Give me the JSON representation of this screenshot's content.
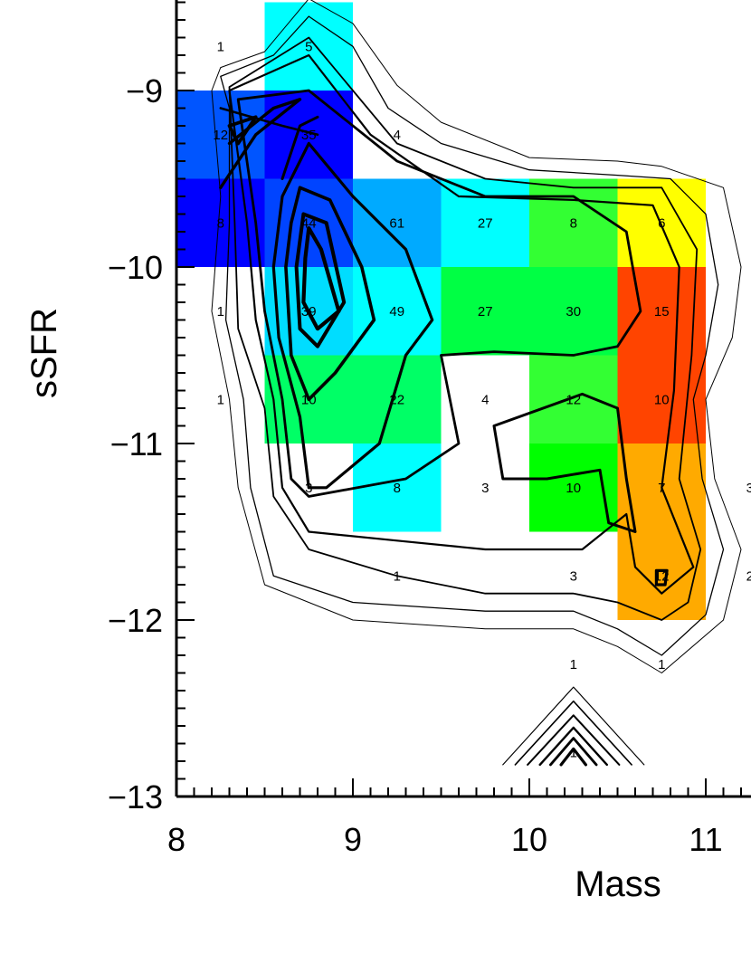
{
  "chart_data": {
    "type": "heatmap",
    "title": "",
    "xlabel": "Mass",
    "ylabel": "sSFR",
    "xlim": [
      8,
      11.35
    ],
    "ylim": [
      -13,
      -8.5
    ],
    "x_ticks": [
      {
        "value": 8,
        "label": "8"
      },
      {
        "value": 9,
        "label": "9"
      },
      {
        "value": 10,
        "label": "10"
      },
      {
        "value": 11,
        "label": "11"
      }
    ],
    "y_ticks": [
      {
        "value": -9,
        "label": "−9"
      },
      {
        "value": -10,
        "label": "−10"
      },
      {
        "value": -11,
        "label": "−11"
      },
      {
        "value": -12,
        "label": "−12"
      },
      {
        "value": -13,
        "label": "−13"
      }
    ],
    "bin_width_x": 0.5,
    "bin_width_y": 0.5,
    "cells": [
      {
        "x": 8.75,
        "y": -8.75,
        "color": "#00ffff"
      },
      {
        "x": 8.25,
        "y": -9.25,
        "color": "#0055ff"
      },
      {
        "x": 8.75,
        "y": -9.25,
        "color": "#0000ff"
      },
      {
        "x": 8.25,
        "y": -9.75,
        "color": "#0000ff"
      },
      {
        "x": 8.75,
        "y": -9.75,
        "color": "#0044ff"
      },
      {
        "x": 9.25,
        "y": -9.75,
        "color": "#00aaff"
      },
      {
        "x": 9.75,
        "y": -9.75,
        "color": "#00ffff"
      },
      {
        "x": 10.25,
        "y": -9.75,
        "color": "#33ff33"
      },
      {
        "x": 10.75,
        "y": -9.75,
        "color": "#ffff00"
      },
      {
        "x": 8.75,
        "y": -10.25,
        "color": "#00ddff"
      },
      {
        "x": 9.25,
        "y": -10.25,
        "color": "#00ffff"
      },
      {
        "x": 9.75,
        "y": -10.25,
        "color": "#00ff44"
      },
      {
        "x": 10.25,
        "y": -10.25,
        "color": "#00ff44"
      },
      {
        "x": 10.75,
        "y": -10.25,
        "color": "#ff4400"
      },
      {
        "x": 8.75,
        "y": -10.75,
        "color": "#00ff66"
      },
      {
        "x": 9.25,
        "y": -10.75,
        "color": "#00ff66"
      },
      {
        "x": 10.25,
        "y": -10.75,
        "color": "#33ff33"
      },
      {
        "x": 10.75,
        "y": -10.75,
        "color": "#ff4400"
      },
      {
        "x": 9.25,
        "y": -11.25,
        "color": "#00ffff"
      },
      {
        "x": 10.25,
        "y": -11.25,
        "color": "#00ff00"
      },
      {
        "x": 10.75,
        "y": -11.25,
        "color": "#ffaa00"
      },
      {
        "x": 10.75,
        "y": -11.75,
        "color": "#ffaa00"
      }
    ],
    "counts": [
      {
        "x": 8.25,
        "y": -8.75,
        "label": "1"
      },
      {
        "x": 8.75,
        "y": -8.75,
        "label": "5"
      },
      {
        "x": 8.25,
        "y": -9.25,
        "label": "12"
      },
      {
        "x": 8.75,
        "y": -9.25,
        "label": "35"
      },
      {
        "x": 9.25,
        "y": -9.25,
        "label": "4"
      },
      {
        "x": 8.25,
        "y": -9.75,
        "label": "8"
      },
      {
        "x": 8.75,
        "y": -9.75,
        "label": "44"
      },
      {
        "x": 9.25,
        "y": -9.75,
        "label": "61"
      },
      {
        "x": 9.75,
        "y": -9.75,
        "label": "27"
      },
      {
        "x": 10.25,
        "y": -9.75,
        "label": "8"
      },
      {
        "x": 10.75,
        "y": -9.75,
        "label": "6"
      },
      {
        "x": 8.25,
        "y": -10.25,
        "label": "1"
      },
      {
        "x": 8.75,
        "y": -10.25,
        "label": "39"
      },
      {
        "x": 9.25,
        "y": -10.25,
        "label": "49"
      },
      {
        "x": 9.75,
        "y": -10.25,
        "label": "27"
      },
      {
        "x": 10.25,
        "y": -10.25,
        "label": "30"
      },
      {
        "x": 10.75,
        "y": -10.25,
        "label": "15"
      },
      {
        "x": 8.25,
        "y": -10.75,
        "label": "1"
      },
      {
        "x": 8.75,
        "y": -10.75,
        "label": "10"
      },
      {
        "x": 9.25,
        "y": -10.75,
        "label": "22"
      },
      {
        "x": 9.75,
        "y": -10.75,
        "label": "4"
      },
      {
        "x": 10.25,
        "y": -10.75,
        "label": "12"
      },
      {
        "x": 10.75,
        "y": -10.75,
        "label": "10"
      },
      {
        "x": 8.75,
        "y": -11.25,
        "label": "3"
      },
      {
        "x": 9.25,
        "y": -11.25,
        "label": "8"
      },
      {
        "x": 9.75,
        "y": -11.25,
        "label": "3"
      },
      {
        "x": 10.25,
        "y": -11.25,
        "label": "10"
      },
      {
        "x": 10.75,
        "y": -11.25,
        "label": "7"
      },
      {
        "x": 11.25,
        "y": -11.25,
        "label": "3"
      },
      {
        "x": 9.25,
        "y": -11.75,
        "label": "1"
      },
      {
        "x": 10.25,
        "y": -11.75,
        "label": "3"
      },
      {
        "x": 10.75,
        "y": -11.75,
        "label": "12"
      },
      {
        "x": 11.25,
        "y": -11.75,
        "label": "2"
      },
      {
        "x": 10.25,
        "y": -12.25,
        "label": "1"
      },
      {
        "x": 10.75,
        "y": -12.25,
        "label": "1"
      },
      {
        "x": 10.25,
        "y": -12.75,
        "label": "1"
      }
    ],
    "contours": [
      {
        "stroke_width": 1,
        "points": [
          [
            8.25,
            -8.87
          ],
          [
            8.5,
            -8.78
          ],
          [
            8.75,
            -8.48
          ],
          [
            9.0,
            -8.62
          ],
          [
            9.25,
            -8.97
          ],
          [
            9.5,
            -9.18
          ],
          [
            10.0,
            -9.38
          ],
          [
            10.5,
            -9.4
          ],
          [
            10.75,
            -9.43
          ],
          [
            11.1,
            -9.55
          ],
          [
            11.2,
            -10.0
          ],
          [
            11.15,
            -10.4
          ],
          [
            11.0,
            -10.75
          ],
          [
            11.05,
            -11.2
          ],
          [
            11.2,
            -11.6
          ],
          [
            11.1,
            -12.0
          ],
          [
            10.75,
            -12.3
          ],
          [
            10.5,
            -12.15
          ],
          [
            10.25,
            -12.05
          ],
          [
            9.75,
            -12.05
          ],
          [
            9.0,
            -12.0
          ],
          [
            8.5,
            -11.8
          ],
          [
            8.35,
            -11.25
          ],
          [
            8.3,
            -10.75
          ],
          [
            8.2,
            -10.25
          ],
          [
            8.25,
            -9.6
          ],
          [
            8.2,
            -9.0
          ],
          [
            8.25,
            -8.87
          ]
        ]
      },
      {
        "stroke_width": 1.3,
        "points": [
          [
            8.25,
            -8.92
          ],
          [
            8.55,
            -8.8
          ],
          [
            8.75,
            -8.58
          ],
          [
            9.0,
            -8.75
          ],
          [
            9.2,
            -9.1
          ],
          [
            9.5,
            -9.3
          ],
          [
            10.0,
            -9.45
          ],
          [
            10.5,
            -9.48
          ],
          [
            10.8,
            -9.5
          ],
          [
            11.0,
            -9.7
          ],
          [
            11.07,
            -10.1
          ],
          [
            11.0,
            -10.5
          ],
          [
            10.93,
            -10.75
          ],
          [
            10.98,
            -11.2
          ],
          [
            11.1,
            -11.6
          ],
          [
            11.0,
            -11.97
          ],
          [
            10.75,
            -12.2
          ],
          [
            10.5,
            -12.05
          ],
          [
            10.25,
            -11.95
          ],
          [
            9.75,
            -11.95
          ],
          [
            9.0,
            -11.9
          ],
          [
            8.55,
            -11.75
          ],
          [
            8.42,
            -11.25
          ],
          [
            8.38,
            -10.75
          ],
          [
            8.28,
            -10.3
          ],
          [
            8.3,
            -9.75
          ],
          [
            8.3,
            -9.1
          ],
          [
            8.25,
            -8.92
          ]
        ]
      },
      {
        "stroke_width": 1.8,
        "points": [
          [
            8.3,
            -8.98
          ],
          [
            8.75,
            -8.7
          ],
          [
            9.0,
            -9.0
          ],
          [
            9.25,
            -9.3
          ],
          [
            9.75,
            -9.5
          ],
          [
            10.25,
            -9.55
          ],
          [
            10.75,
            -9.55
          ],
          [
            10.95,
            -9.9
          ],
          [
            10.92,
            -10.5
          ],
          [
            10.85,
            -11.2
          ],
          [
            10.97,
            -11.6
          ],
          [
            10.9,
            -11.9
          ],
          [
            10.75,
            -12.0
          ],
          [
            10.5,
            -11.9
          ],
          [
            10.25,
            -11.85
          ],
          [
            9.75,
            -11.85
          ],
          [
            9.25,
            -11.75
          ],
          [
            8.75,
            -11.6
          ],
          [
            8.55,
            -11.3
          ],
          [
            8.5,
            -10.8
          ],
          [
            8.35,
            -10.35
          ],
          [
            8.33,
            -9.75
          ],
          [
            8.3,
            -8.98
          ]
        ]
      },
      {
        "stroke_width": 2.2,
        "points": [
          [
            8.3,
            -9.0
          ],
          [
            8.75,
            -8.8
          ],
          [
            9.1,
            -9.25
          ],
          [
            9.6,
            -9.6
          ],
          [
            10.25,
            -9.62
          ],
          [
            10.7,
            -9.65
          ],
          [
            10.85,
            -10.0
          ],
          [
            10.82,
            -10.7
          ],
          [
            10.75,
            -11.25
          ],
          [
            10.93,
            -11.7
          ],
          [
            10.75,
            -11.85
          ],
          [
            10.6,
            -11.7
          ],
          [
            10.55,
            -11.4
          ],
          [
            10.3,
            -11.6
          ],
          [
            9.75,
            -11.6
          ],
          [
            9.25,
            -11.55
          ],
          [
            8.75,
            -11.5
          ],
          [
            8.6,
            -11.25
          ],
          [
            8.55,
            -10.75
          ],
          [
            8.45,
            -10.3
          ],
          [
            8.4,
            -9.75
          ],
          [
            8.3,
            -9.0
          ]
        ]
      },
      {
        "stroke_width": 2.8,
        "points": [
          [
            8.35,
            -9.05
          ],
          [
            8.75,
            -9.0
          ],
          [
            9.25,
            -9.4
          ],
          [
            9.75,
            -9.6
          ],
          [
            10.25,
            -9.6
          ],
          [
            10.55,
            -9.8
          ],
          [
            10.63,
            -10.25
          ],
          [
            10.5,
            -10.45
          ],
          [
            10.25,
            -10.5
          ],
          [
            9.8,
            -10.48
          ],
          [
            9.5,
            -10.5
          ],
          [
            9.6,
            -11.0
          ],
          [
            9.3,
            -11.2
          ],
          [
            8.75,
            -11.3
          ],
          [
            8.65,
            -11.2
          ],
          [
            8.6,
            -10.75
          ],
          [
            8.5,
            -10.25
          ],
          [
            8.45,
            -9.75
          ],
          [
            8.35,
            -9.05
          ]
        ]
      },
      {
        "stroke_width": 3.2,
        "points": [
          [
            8.75,
            -9.3
          ],
          [
            9.0,
            -9.6
          ],
          [
            9.3,
            -9.9
          ],
          [
            9.45,
            -10.3
          ],
          [
            9.3,
            -10.5
          ],
          [
            9.15,
            -11.0
          ],
          [
            8.85,
            -11.25
          ],
          [
            8.75,
            -11.25
          ],
          [
            8.7,
            -10.85
          ],
          [
            8.58,
            -10.4
          ],
          [
            8.55,
            -10.0
          ],
          [
            8.6,
            -9.6
          ],
          [
            8.75,
            -9.3
          ]
        ]
      },
      {
        "stroke_width": 3.6,
        "points": [
          [
            8.7,
            -9.55
          ],
          [
            8.87,
            -9.62
          ],
          [
            9.05,
            -10.0
          ],
          [
            9.12,
            -10.3
          ],
          [
            8.9,
            -10.6
          ],
          [
            8.75,
            -10.75
          ],
          [
            8.65,
            -10.5
          ],
          [
            8.62,
            -10.0
          ],
          [
            8.65,
            -9.75
          ],
          [
            8.7,
            -9.55
          ]
        ]
      },
      {
        "stroke_width": 4,
        "points": [
          [
            8.72,
            -9.7
          ],
          [
            8.85,
            -9.75
          ],
          [
            8.95,
            -10.2
          ],
          [
            8.8,
            -10.45
          ],
          [
            8.7,
            -10.35
          ],
          [
            8.68,
            -10.0
          ],
          [
            8.72,
            -9.7
          ]
        ]
      },
      {
        "stroke_width": 4.2,
        "points": [
          [
            8.75,
            -9.78
          ],
          [
            8.82,
            -9.9
          ],
          [
            8.92,
            -10.25
          ],
          [
            8.8,
            -10.35
          ],
          [
            8.72,
            -10.2
          ],
          [
            8.73,
            -9.95
          ],
          [
            8.75,
            -9.78
          ]
        ]
      },
      {
        "stroke_width": 3.8,
        "points": [
          [
            8.3,
            -9.2
          ],
          [
            8.45,
            -9.15
          ],
          [
            8.35,
            -9.3
          ],
          [
            8.3,
            -9.2
          ]
        ]
      },
      {
        "stroke_width": 3.4,
        "points": [
          [
            8.25,
            -9.55
          ],
          [
            8.45,
            -9.25
          ],
          [
            8.7,
            -9.05
          ],
          [
            8.55,
            -9.1
          ],
          [
            8.3,
            -9.3
          ]
        ]
      },
      {
        "stroke_width": 3.0,
        "points": [
          [
            8.6,
            -9.5
          ],
          [
            8.7,
            -9.2
          ],
          [
            8.8,
            -9.15
          ]
        ]
      },
      {
        "stroke_width": 2.6,
        "points": [
          [
            8.25,
            -9.1
          ],
          [
            8.6,
            -9.2
          ],
          [
            8.8,
            -9.25
          ]
        ]
      },
      {
        "stroke_width": 3,
        "points": [
          [
            9.8,
            -10.9
          ],
          [
            10.3,
            -10.72
          ],
          [
            10.5,
            -10.8
          ],
          [
            10.55,
            -11.2
          ],
          [
            10.6,
            -11.5
          ],
          [
            10.45,
            -11.45
          ],
          [
            10.4,
            -11.15
          ],
          [
            10.1,
            -11.2
          ],
          [
            9.85,
            -11.2
          ],
          [
            9.8,
            -10.9
          ]
        ]
      },
      {
        "stroke_width": 3.2,
        "points": [
          [
            10.72,
            -11.72
          ],
          [
            10.78,
            -11.72
          ],
          [
            10.77,
            -11.8
          ],
          [
            10.72,
            -11.8
          ],
          [
            10.72,
            -11.72
          ]
        ]
      },
      {
        "stroke_width": 1.2,
        "points": [
          [
            9.85,
            -12.82
          ],
          [
            10.25,
            -12.38
          ],
          [
            10.65,
            -12.82
          ]
        ]
      },
      {
        "stroke_width": 1.6,
        "points": [
          [
            9.92,
            -12.82
          ],
          [
            10.25,
            -12.46
          ],
          [
            10.58,
            -12.82
          ]
        ]
      },
      {
        "stroke_width": 2.0,
        "points": [
          [
            9.99,
            -12.82
          ],
          [
            10.25,
            -12.54
          ],
          [
            10.51,
            -12.82
          ]
        ]
      },
      {
        "stroke_width": 2.4,
        "points": [
          [
            10.06,
            -12.82
          ],
          [
            10.25,
            -12.61
          ],
          [
            10.44,
            -12.82
          ]
        ]
      },
      {
        "stroke_width": 2.8,
        "points": [
          [
            10.12,
            -12.82
          ],
          [
            10.25,
            -12.67
          ],
          [
            10.38,
            -12.82
          ]
        ]
      },
      {
        "stroke_width": 3.2,
        "points": [
          [
            10.18,
            -12.82
          ],
          [
            10.25,
            -12.73
          ],
          [
            10.32,
            -12.82
          ]
        ]
      }
    ]
  }
}
